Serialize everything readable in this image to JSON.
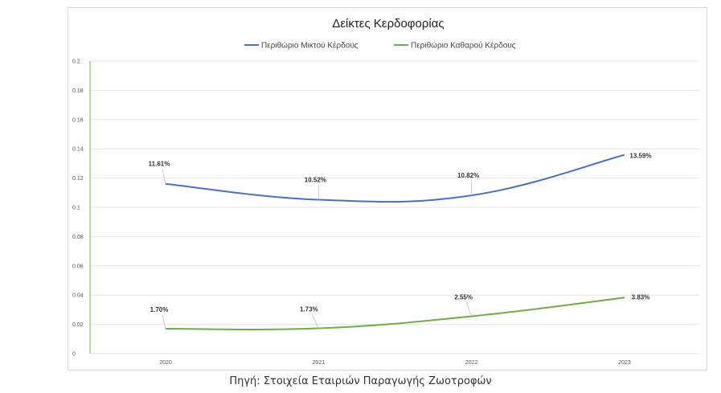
{
  "caption": "Πηγή: Στοιχεία Εταιριών Παραγωγής Ζωοτροφών",
  "chart_data": {
    "type": "line",
    "title": "Δείκτες Κερδοφορίας",
    "xlabel": "",
    "ylabel": "",
    "categories": [
      "2020",
      "2021",
      "2022",
      "2023"
    ],
    "ylim": [
      0,
      0.2
    ],
    "yticks": [
      0,
      0.02,
      0.04,
      0.06,
      0.08,
      0.1,
      0.12,
      0.14,
      0.16,
      0.18,
      0.2
    ],
    "ytick_labels": [
      "0",
      "0.02",
      "0.04",
      "0.06",
      "0.08",
      "0.1",
      "0.12",
      "0.14",
      "0.16",
      "0.18",
      "0.2"
    ],
    "grid": true,
    "legend": "top",
    "smooth": true,
    "series": [
      {
        "name": "Περιθώριο Μικτού Κέρδους",
        "color": "#4472c4",
        "values": [
          0.1161,
          0.1052,
          0.1082,
          0.1359
        ],
        "labels": [
          "11.61%",
          "10.52%",
          "10.82%",
          "13.59%"
        ]
      },
      {
        "name": "Περιθώριο Καθαρού Κέρδους",
        "color": "#70ad47",
        "values": [
          0.017,
          0.0173,
          0.0255,
          0.0383
        ],
        "labels": [
          "1.70%",
          "1.73%",
          "2.55%",
          "3.83%"
        ]
      }
    ]
  }
}
